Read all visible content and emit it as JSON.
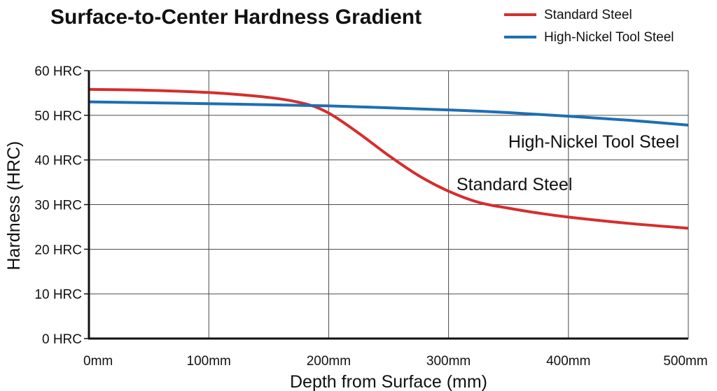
{
  "chart_data": {
    "type": "line",
    "title": "Surface-to-Center Hardness Gradient",
    "xlabel": "Depth from Surface (mm)",
    "ylabel": "Hardness (HRC)",
    "xlim": [
      0,
      500
    ],
    "ylim": [
      0,
      60
    ],
    "x_ticks": [
      {
        "value": 0,
        "label": "0mm"
      },
      {
        "value": 100,
        "label": "100mm"
      },
      {
        "value": 200,
        "label": "200mm"
      },
      {
        "value": 300,
        "label": "300mm"
      },
      {
        "value": 400,
        "label": "400mm"
      },
      {
        "value": 500,
        "label": "500mm"
      }
    ],
    "y_ticks": [
      {
        "value": 0,
        "label": "0 HRC"
      },
      {
        "value": 10,
        "label": "10 HRC"
      },
      {
        "value": 20,
        "label": "20 HRC"
      },
      {
        "value": 30,
        "label": "30 HRC"
      },
      {
        "value": 40,
        "label": "40 HRC"
      },
      {
        "value": 50,
        "label": "50 HRC"
      },
      {
        "value": 60,
        "label": "60 HRC"
      }
    ],
    "grid": true,
    "legend_position": "top-right",
    "series": [
      {
        "name": "Standard Steel",
        "color": "#d62d2d",
        "annotation": "Standard Steel",
        "points": [
          [
            0,
            55.8
          ],
          [
            50,
            55.6
          ],
          [
            100,
            55.1
          ],
          [
            150,
            54.0
          ],
          [
            180,
            52.6
          ],
          [
            200,
            50.5
          ],
          [
            225,
            46.0
          ],
          [
            250,
            41.0
          ],
          [
            275,
            36.5
          ],
          [
            300,
            33.0
          ],
          [
            325,
            30.5
          ],
          [
            350,
            29.2
          ],
          [
            375,
            28.1
          ],
          [
            400,
            27.2
          ],
          [
            450,
            25.8
          ],
          [
            500,
            24.7
          ]
        ]
      },
      {
        "name": "High-Nickel Tool Steel",
        "color": "#1f6eb3",
        "annotation": "High-Nickel Tool Steel",
        "points": [
          [
            0,
            53.0
          ],
          [
            100,
            52.6
          ],
          [
            200,
            52.1
          ],
          [
            300,
            51.2
          ],
          [
            350,
            50.6
          ],
          [
            400,
            49.8
          ],
          [
            450,
            48.9
          ],
          [
            500,
            47.8
          ]
        ]
      }
    ]
  }
}
